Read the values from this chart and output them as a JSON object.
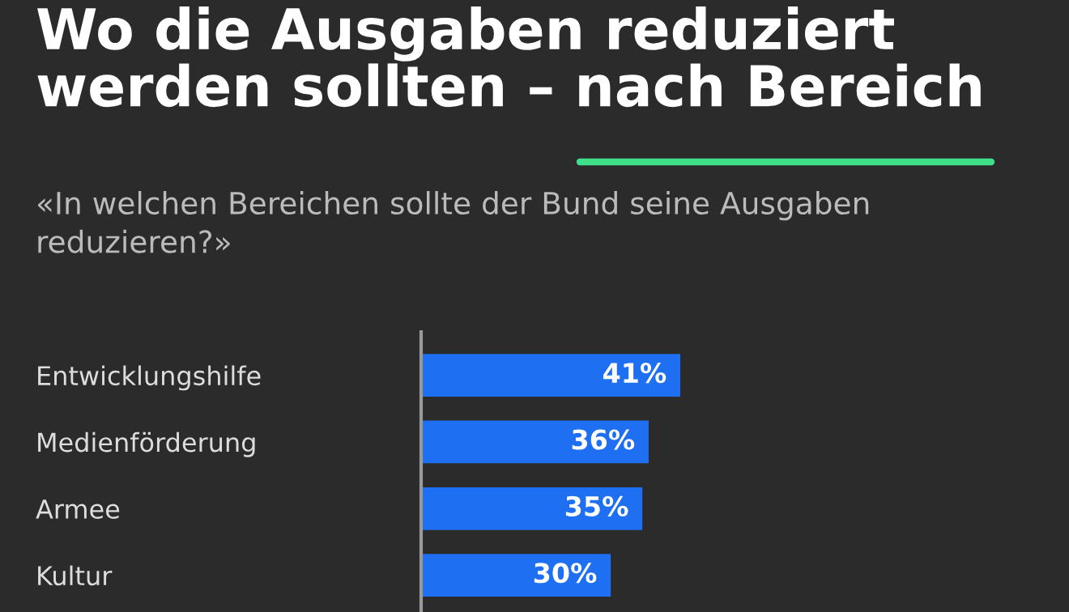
{
  "chart_data": {
    "type": "bar",
    "orientation": "horizontal",
    "title": "Wo die Ausgaben reduziert\nwerden sollten – nach Bereich",
    "subtitle": "«In welchen Bereichen sollte der Bund seine Ausgaben\nreduzieren?»",
    "categories": [
      "Entwicklungshilfe",
      "Medienförderung",
      "Armee",
      "Kultur"
    ],
    "values": [
      41,
      36,
      35,
      30
    ],
    "color": "#1f6ff2",
    "tick_labels": "y",
    "value_labels": [
      "41%",
      "36%",
      "35%",
      "30%"
    ],
    "grid": false,
    "legend": false
  }
}
